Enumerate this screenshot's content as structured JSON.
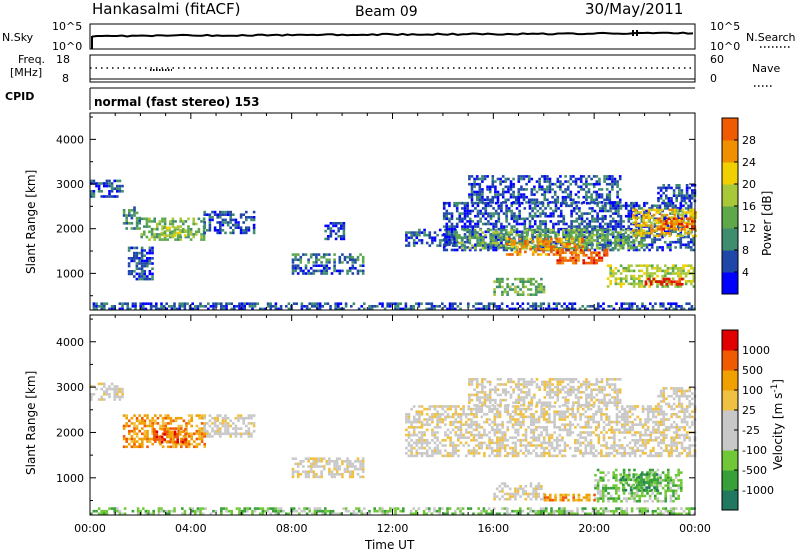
{
  "header": {
    "station": "Hankasalmi (fitACF)",
    "beam": "Beam 09",
    "date": "30/May/2011"
  },
  "colors": {
    "scale_power": [
      "#0000ff",
      "#1f47a8",
      "#3f8c6e",
      "#5ea84a",
      "#a8c83a",
      "#f0d000",
      "#f09000",
      "#f05a00",
      "#e01000"
    ],
    "scale_velocity": [
      "#e00000",
      "#f05a00",
      "#f0a000",
      "#f0c040",
      "#c8c8c8",
      "#c8c8c8",
      "#70c838",
      "#38a038",
      "#207860",
      "#2040b0",
      "#1c2ccc"
    ]
  },
  "chart_data": [
    {
      "type": "line",
      "name": "nsky-nsearch-panel",
      "y_left_label": "N.Sky",
      "y_right_label": "N.Search",
      "y_left_ticks": [
        "10^5",
        "10^0"
      ],
      "y_right_ticks": [
        "10^5",
        "10^0"
      ],
      "xlim_hours": [
        0,
        24
      ]
    },
    {
      "type": "scatter",
      "name": "freq-nave-panel",
      "y_left_label_lines": [
        "Freq.",
        "[MHz]"
      ],
      "y_right_label": "Nave",
      "y_left_ticks": [
        "18",
        "8"
      ],
      "y_right_ticks": [
        "60",
        "0"
      ],
      "xlim_hours": [
        0,
        24
      ]
    },
    {
      "type": "table",
      "name": "cpid-panel",
      "label": "CPID",
      "text": "normal (fast stereo) 153"
    },
    {
      "type": "heatmap",
      "name": "power-panel",
      "ylabel": "Slant Range [km]",
      "ylim": [
        180,
        4590
      ],
      "yticks": [
        "1000",
        "2000",
        "3000",
        "4000"
      ],
      "xlim_hours": [
        0,
        24
      ],
      "colorbar_label": "Power [dB]",
      "colorbar_ticks": [
        "4",
        "8",
        "12",
        "16",
        "20",
        "24",
        "28"
      ],
      "regions": [
        {
          "t0": 0.0,
          "t1": 24.0,
          "r0": 180,
          "r1": 350,
          "level": 1
        },
        {
          "t0": 0.0,
          "t1": 1.3,
          "r0": 2700,
          "r1": 3100,
          "level": 1
        },
        {
          "t0": 1.3,
          "t1": 2.0,
          "r0": 2000,
          "r1": 2500,
          "level": 2
        },
        {
          "t0": 2.0,
          "t1": 4.5,
          "r0": 1750,
          "r1": 2250,
          "level": 3
        },
        {
          "t0": 2.8,
          "t1": 3.8,
          "r0": 1850,
          "r1": 2050,
          "level": 4
        },
        {
          "t0": 1.5,
          "t1": 2.5,
          "r0": 900,
          "r1": 1600,
          "level": 1
        },
        {
          "t0": 4.5,
          "t1": 6.5,
          "r0": 1900,
          "r1": 2400,
          "level": 1
        },
        {
          "t0": 8.0,
          "t1": 10.8,
          "r0": 1250,
          "r1": 1450,
          "level": 2
        },
        {
          "t0": 8.0,
          "t1": 10.8,
          "r0": 1000,
          "r1": 1200,
          "level": 1
        },
        {
          "t0": 9.3,
          "t1": 10.1,
          "r0": 1750,
          "r1": 2150,
          "level": 1
        },
        {
          "t0": 12.5,
          "t1": 14.5,
          "r0": 1600,
          "r1": 2000,
          "level": 1
        },
        {
          "t0": 14.0,
          "t1": 24.0,
          "r0": 1500,
          "r1": 2600,
          "level": 1
        },
        {
          "t0": 14.5,
          "t1": 22.0,
          "r0": 1550,
          "r1": 2000,
          "level": 3
        },
        {
          "t0": 16.5,
          "t1": 19.5,
          "r0": 1450,
          "r1": 1800,
          "level": 6
        },
        {
          "t0": 18.5,
          "t1": 20.5,
          "r0": 1250,
          "r1": 1550,
          "level": 7
        },
        {
          "t0": 21.5,
          "t1": 24.0,
          "r0": 1850,
          "r1": 2450,
          "level": 5
        },
        {
          "t0": 22.5,
          "t1": 24.0,
          "r0": 2000,
          "r1": 2250,
          "level": 7
        },
        {
          "t0": 16.0,
          "t1": 18.0,
          "r0": 500,
          "r1": 900,
          "level": 3
        },
        {
          "t0": 20.5,
          "t1": 24.0,
          "r0": 700,
          "r1": 1200,
          "level": 4
        },
        {
          "t0": 22.0,
          "t1": 23.5,
          "r0": 750,
          "r1": 900,
          "level": 8
        },
        {
          "t0": 15.0,
          "t1": 21.0,
          "r0": 2600,
          "r1": 3200,
          "level": 1
        },
        {
          "t0": 22.5,
          "t1": 24.0,
          "r0": 2600,
          "r1": 3000,
          "level": 1
        }
      ]
    },
    {
      "type": "heatmap",
      "name": "velocity-panel",
      "ylabel": "Slant Range [km]",
      "ylim": [
        180,
        4590
      ],
      "yticks": [
        "1000",
        "2000",
        "3000",
        "4000"
      ],
      "xlim_hours": [
        0,
        24
      ],
      "xticks": [
        "00:00",
        "04:00",
        "08:00",
        "12:00",
        "16:00",
        "20:00",
        "00:00"
      ],
      "xlabel": "Time UT",
      "colorbar_label": "Velocity [m s^-1]",
      "colorbar_ticks": [
        "-1000",
        "-500",
        "-100",
        "-25",
        "25",
        "100",
        "500",
        "1000"
      ],
      "regions": [
        {
          "t0": 0.0,
          "t1": 24.0,
          "r0": 180,
          "r1": 350,
          "level": 6
        },
        {
          "t0": 0.0,
          "t1": 1.3,
          "r0": 2700,
          "r1": 3100,
          "level": 4
        },
        {
          "t0": 1.3,
          "t1": 4.5,
          "r0": 1700,
          "r1": 2400,
          "level": 2
        },
        {
          "t0": 2.5,
          "t1": 3.8,
          "r0": 1800,
          "r1": 2100,
          "level": 1
        },
        {
          "t0": 4.5,
          "t1": 6.5,
          "r0": 1900,
          "r1": 2400,
          "level": 4
        },
        {
          "t0": 8.0,
          "t1": 10.8,
          "r0": 1000,
          "r1": 1450,
          "level": 4
        },
        {
          "t0": 12.5,
          "t1": 24.0,
          "r0": 1500,
          "r1": 2600,
          "level": 4
        },
        {
          "t0": 16.0,
          "t1": 18.0,
          "r0": 500,
          "r1": 900,
          "level": 4
        },
        {
          "t0": 20.0,
          "t1": 23.5,
          "r0": 500,
          "r1": 1200,
          "level": 6
        },
        {
          "t0": 21.0,
          "t1": 22.5,
          "r0": 700,
          "r1": 1100,
          "level": 7
        },
        {
          "t0": 18.0,
          "t1": 20.0,
          "r0": 500,
          "r1": 650,
          "level": 2
        },
        {
          "t0": 15.0,
          "t1": 21.0,
          "r0": 2600,
          "r1": 3200,
          "level": 4
        },
        {
          "t0": 22.5,
          "t1": 24.0,
          "r0": 2600,
          "r1": 3000,
          "level": 4
        }
      ]
    }
  ]
}
